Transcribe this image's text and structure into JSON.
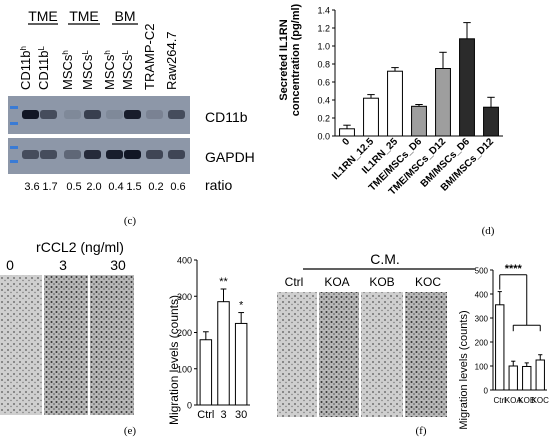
{
  "panel_c": {
    "label": "(c)",
    "groups": [
      "TME",
      "TME",
      "BM"
    ],
    "lanes": [
      {
        "base": "CD11b",
        "sup": "h"
      },
      {
        "base": "CD11b",
        "sup": "L"
      },
      {
        "base": "MSCs",
        "sup": "h"
      },
      {
        "base": "MSCs",
        "sup": "L"
      },
      {
        "base": "MSCs",
        "sup": "h"
      },
      {
        "base": "MSCs",
        "sup": "L"
      },
      {
        "base": "TRAMP-C2",
        "sup": ""
      },
      {
        "base": "Raw264.7",
        "sup": ""
      }
    ],
    "blot_labels": [
      "CD11b",
      "GAPDH"
    ],
    "ratios": [
      "3.6",
      "1.7",
      "0.5",
      "2.0",
      "0.4",
      "1.5",
      "0.2",
      "0.6"
    ],
    "ratio_label": "ratio",
    "colors": {
      "blot_bg": "#8a94a6",
      "band": "#0b0f1e",
      "marker": "#3a7bd5"
    }
  },
  "panel_d": {
    "label": "(d)",
    "chart_data": {
      "type": "bar",
      "ylabel": "Secreted IL1RN concentration (pg/ml)",
      "ylabel_lines": [
        "Secreted IL1RN",
        "concentration (pg/ml)"
      ],
      "ylim": [
        0,
        1.4
      ],
      "yticks": [
        "0.0",
        "0.2",
        "0.4",
        "0.6",
        "0.8",
        "1.0",
        "1.2",
        "1.4"
      ],
      "categories": [
        "0",
        "IL1RN_12.5",
        "IL1RN_25",
        "TME/MSCs_D6",
        "TME/MSCs_D12",
        "BM/MSCs_D6",
        "BM/MSCs_D12"
      ],
      "values": [
        0.08,
        0.42,
        0.72,
        0.33,
        0.75,
        1.08,
        0.32
      ],
      "errors": [
        0.04,
        0.04,
        0.04,
        0.02,
        0.18,
        0.18,
        0.11
      ],
      "colors": [
        "#ffffff",
        "#ffffff",
        "#ffffff",
        "#9e9e9e",
        "#9e9e9e",
        "#2b2b2b",
        "#2b2b2b"
      ]
    }
  },
  "panel_e": {
    "label": "(e)",
    "treatment_label": "rCCL2 (ng/ml)",
    "doses": [
      "0",
      "3",
      "30"
    ],
    "chart_data": {
      "type": "bar",
      "ylabel": "Migration levels (counts)",
      "ylim": [
        0,
        400
      ],
      "yticks": [
        "0",
        "100",
        "200",
        "300",
        "400"
      ],
      "categories": [
        "Ctrl",
        "3",
        "30"
      ],
      "values": [
        180,
        285,
        225
      ],
      "errors": [
        22,
        35,
        30
      ],
      "annotations": [
        "",
        "**",
        "*"
      ]
    }
  },
  "panel_f": {
    "label": "(f)",
    "cm_label": "C.M.",
    "wells": [
      "Ctrl",
      "KOA",
      "KOB",
      "KOC"
    ],
    "chart_data": {
      "type": "bar",
      "ylabel": "Migration levels (counts)",
      "ylim": [
        0,
        500
      ],
      "yticks": [
        "0",
        "100",
        "200",
        "300",
        "400",
        "500"
      ],
      "categories": [
        "Ctrl",
        "KOA",
        "KOB",
        "KOC"
      ],
      "values": [
        355,
        100,
        98,
        125
      ],
      "errors": [
        55,
        20,
        15,
        22
      ],
      "significance": "****"
    }
  }
}
